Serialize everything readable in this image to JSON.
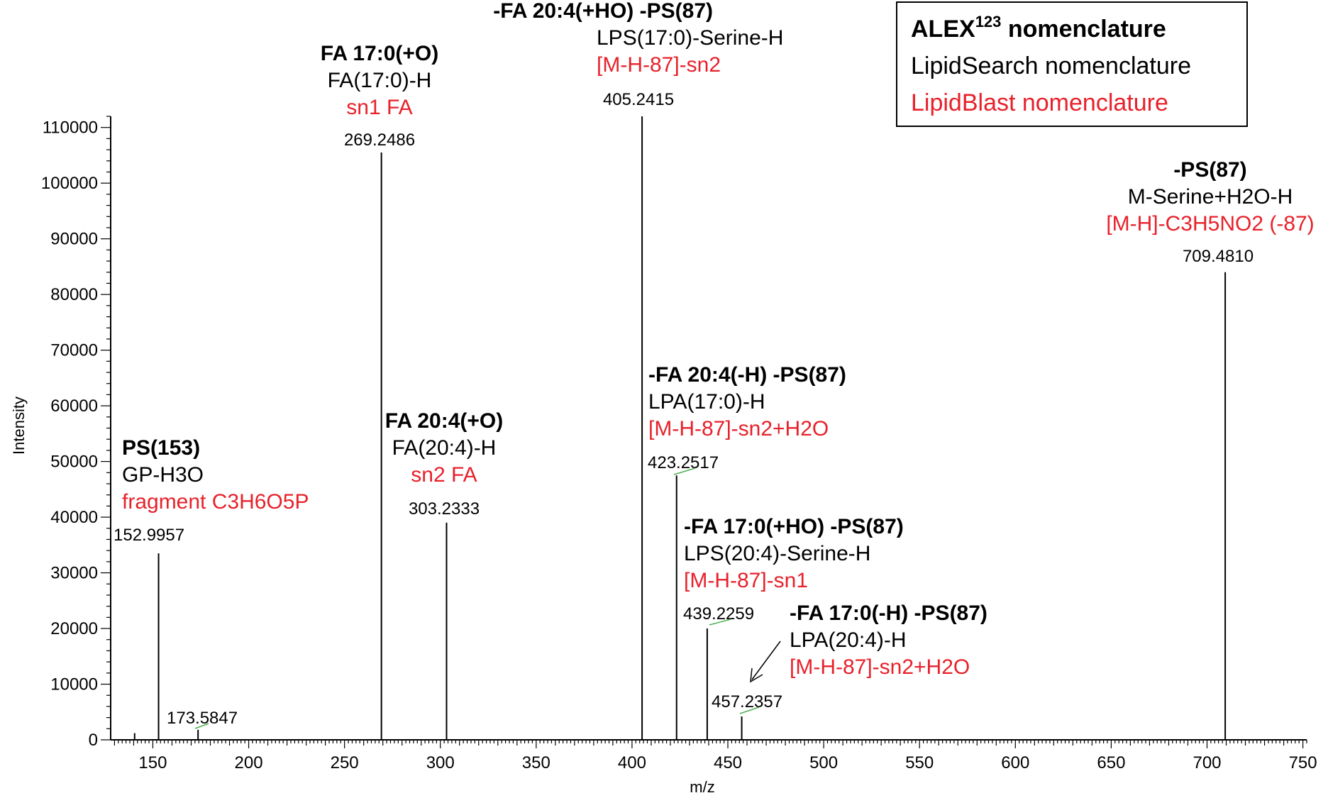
{
  "colors": {
    "axis": "#000000",
    "peak": "#000000",
    "label_black": "#000000",
    "label_red": "#e8212b",
    "leader_green": "#4caf50"
  },
  "legend": {
    "alex_main": "ALEX",
    "alex_sup": "123",
    "alex_rest": " nomenclature",
    "lipidsearch": "LipidSearch nomenclature",
    "lipidblast": "LipidBlast nomenclature"
  },
  "chart_data": {
    "type": "bar",
    "xlabel": "m/z",
    "ylabel": "Intensity",
    "xlim": [
      128,
      752
    ],
    "ylim": [
      0,
      112000
    ],
    "x_ticks": [
      150,
      200,
      250,
      300,
      350,
      400,
      450,
      500,
      550,
      600,
      650,
      700,
      750
    ],
    "y_ticks": [
      0,
      10000,
      20000,
      30000,
      40000,
      50000,
      60000,
      70000,
      80000,
      90000,
      100000,
      110000
    ],
    "peaks": [
      {
        "mz": 140.5,
        "intensity": 1200
      },
      {
        "mz": 152.9957,
        "intensity": 33500,
        "label": "152.9957",
        "alex": "PS(153)",
        "lipidsearch": "GP-H3O",
        "lipidblast": "fragment C3H6O5P"
      },
      {
        "mz": 173.5847,
        "intensity": 1800,
        "label": "173.5847"
      },
      {
        "mz": 269.2486,
        "intensity": 105500,
        "label": "269.2486",
        "alex": "FA 17:0(+O)",
        "lipidsearch": "FA(17:0)-H",
        "lipidblast": "sn1 FA"
      },
      {
        "mz": 303.2333,
        "intensity": 39000,
        "label": "303.2333",
        "alex": "FA 20:4(+O)",
        "lipidsearch": "FA(20:4)-H",
        "lipidblast": "sn2 FA"
      },
      {
        "mz": 405.2415,
        "intensity": 112000,
        "label": "405.2415",
        "alex": "-FA 20:4(+HO) -PS(87)",
        "lipidsearch": "LPS(17:0)-Serine-H",
        "lipidblast": "[M-H-87]-sn2"
      },
      {
        "mz": 423.2517,
        "intensity": 47500,
        "label": "423.2517",
        "alex": "-FA 20:4(-H) -PS(87)",
        "lipidsearch": "LPA(17:0)-H",
        "lipidblast": "[M-H-87]-sn2+H2O"
      },
      {
        "mz": 439.2259,
        "intensity": 20000,
        "label": "439.2259",
        "alex": "-FA 17:0(+HO) -PS(87)",
        "lipidsearch": "LPS(20:4)-Serine-H",
        "lipidblast": "[M-H-87]-sn1"
      },
      {
        "mz": 457.2357,
        "intensity": 4200,
        "label": "457.2357",
        "alex": "-FA 17:0(-H) -PS(87)",
        "lipidsearch": "LPA(20:4)-H",
        "lipidblast": "[M-H-87]-sn2+H2O"
      },
      {
        "mz": 709.481,
        "intensity": 84000,
        "label": "709.4810",
        "alex": "-PS(87)",
        "lipidsearch": "M-Serine+H2O-H",
        "lipidblast": "[M-H]-C3H5NO2 (-87)"
      }
    ]
  }
}
